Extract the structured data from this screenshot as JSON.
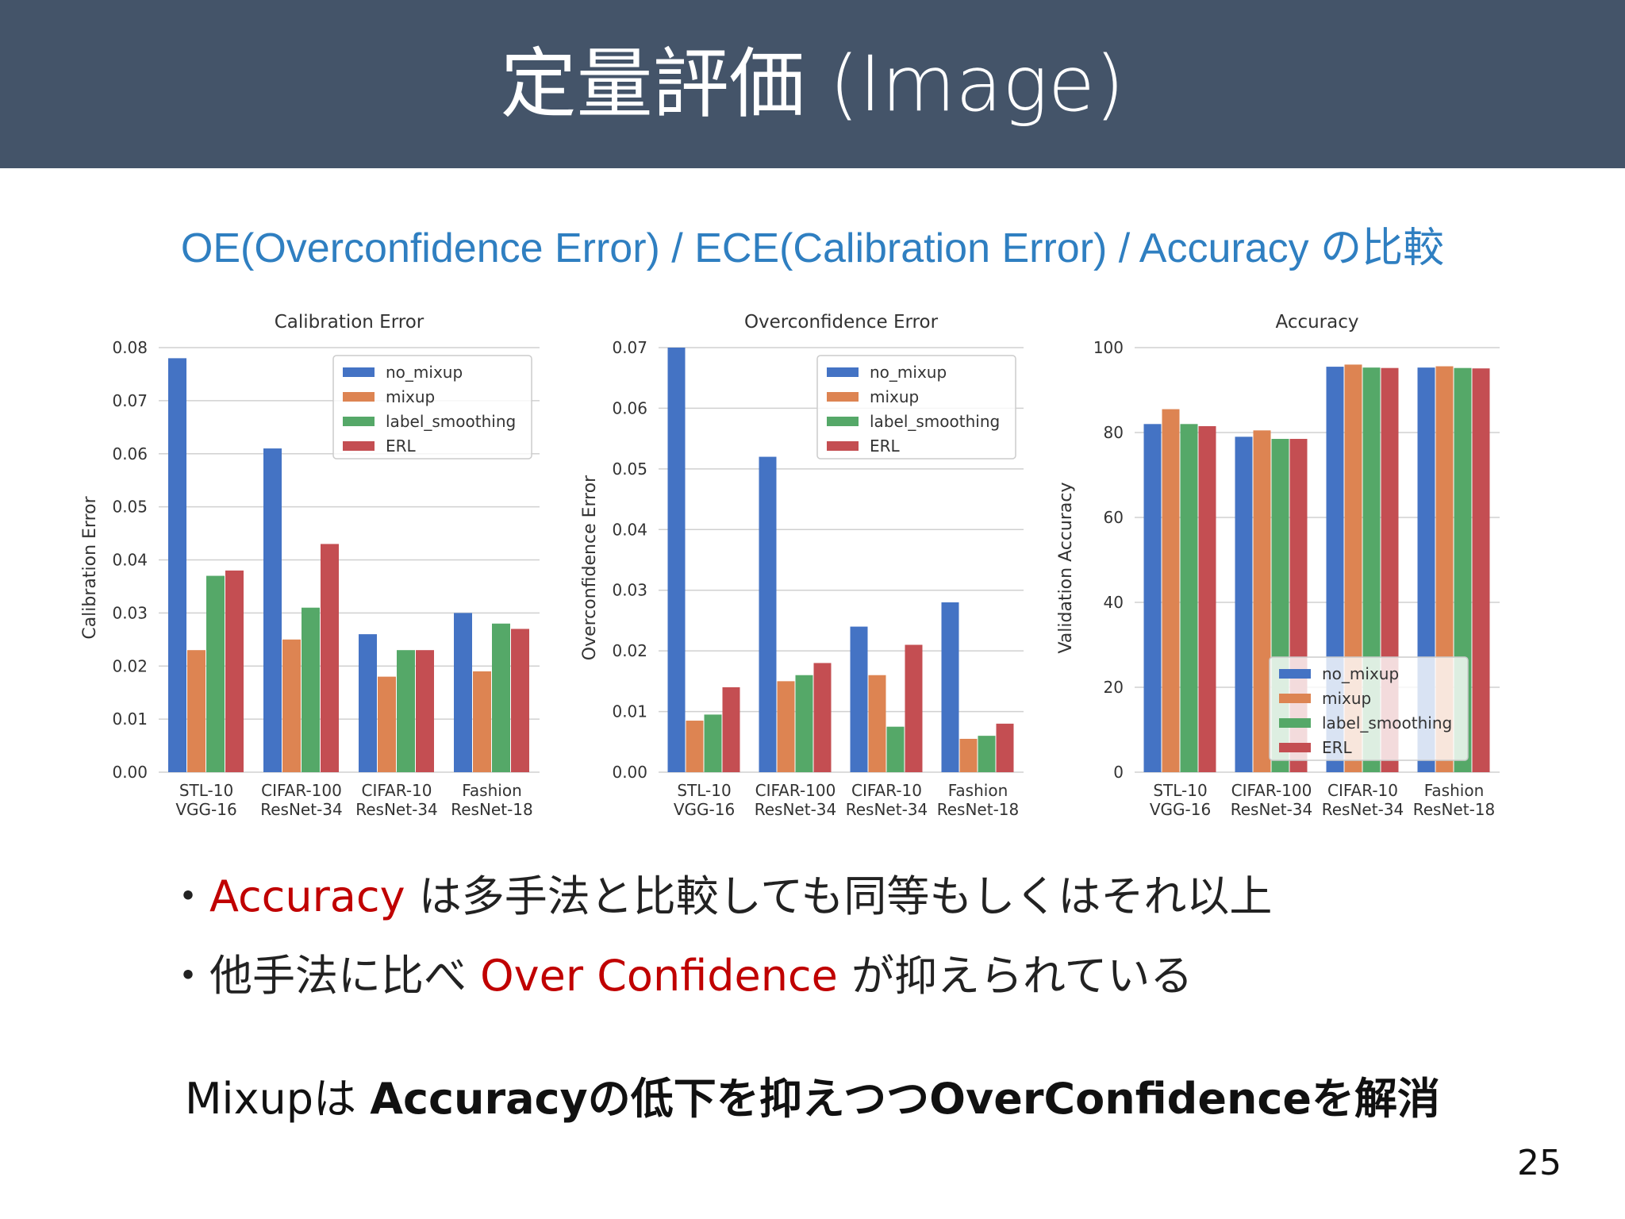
{
  "slide": {
    "title": "定量評価 (Image)",
    "subtitle": "OE(Overconfidence Error) / ECE(Calibration Error) /  Accuracy の比較",
    "page_number": "25"
  },
  "bullets": [
    {
      "prefix": "・",
      "highlight": "Accuracy",
      "text": " は多手法と比較しても同等もしくはそれ以上"
    },
    {
      "prefix": "・他手法に比べ ",
      "highlight": "Over Confidence",
      "text": " が抑えられている"
    }
  ],
  "conclusion": {
    "prefix": "Mixupは ",
    "bold": "Accuracyの低下を抑えつつOverConfidenceを解消"
  },
  "colors": {
    "header_bg": "#445469",
    "subtitle": "#2f7fc1",
    "highlight": "#c00000",
    "series": [
      "#4473c4",
      "#dd8452",
      "#55a868",
      "#c44e52"
    ]
  },
  "chart_data": [
    {
      "type": "bar",
      "title": "Calibration Error",
      "xlabel": "",
      "ylabel": "Calibration Error",
      "categories": [
        [
          "STL-10",
          "VGG-16"
        ],
        [
          "CIFAR-100",
          "ResNet-34"
        ],
        [
          "CIFAR-10",
          "ResNet-34"
        ],
        [
          "Fashion",
          "ResNet-18"
        ]
      ],
      "ylim": [
        0,
        0.08
      ],
      "yticks": [
        "0.00",
        "0.01",
        "0.02",
        "0.03",
        "0.04",
        "0.05",
        "0.06",
        "0.07",
        "0.08"
      ],
      "legend": "top-right",
      "grid": true,
      "series": [
        {
          "name": "no_mixup",
          "values": [
            0.078,
            0.061,
            0.026,
            0.03
          ]
        },
        {
          "name": "mixup",
          "values": [
            0.023,
            0.025,
            0.018,
            0.019
          ]
        },
        {
          "name": "label_smoothing",
          "values": [
            0.037,
            0.031,
            0.023,
            0.028
          ]
        },
        {
          "name": "ERL",
          "values": [
            0.038,
            0.043,
            0.023,
            0.027
          ]
        }
      ]
    },
    {
      "type": "bar",
      "title": "Overconfidence Error",
      "xlabel": "",
      "ylabel": "Overconfidence Error",
      "categories": [
        [
          "STL-10",
          "VGG-16"
        ],
        [
          "CIFAR-100",
          "ResNet-34"
        ],
        [
          "CIFAR-10",
          "ResNet-34"
        ],
        [
          "Fashion",
          "ResNet-18"
        ]
      ],
      "ylim": [
        0,
        0.07
      ],
      "yticks": [
        "0.00",
        "0.01",
        "0.02",
        "0.03",
        "0.04",
        "0.05",
        "0.06",
        "0.07"
      ],
      "legend": "top-right",
      "grid": true,
      "series": [
        {
          "name": "no_mixup",
          "values": [
            0.07,
            0.052,
            0.024,
            0.028
          ]
        },
        {
          "name": "mixup",
          "values": [
            0.0085,
            0.015,
            0.016,
            0.0055
          ]
        },
        {
          "name": "label_smoothing",
          "values": [
            0.0095,
            0.016,
            0.0075,
            0.006
          ]
        },
        {
          "name": "ERL",
          "values": [
            0.014,
            0.018,
            0.021,
            0.008
          ]
        }
      ]
    },
    {
      "type": "bar",
      "title": "Accuracy",
      "xlabel": "",
      "ylabel": "Validation Accuracy",
      "categories": [
        [
          "STL-10",
          "VGG-16"
        ],
        [
          "CIFAR-100",
          "ResNet-34"
        ],
        [
          "CIFAR-10",
          "ResNet-34"
        ],
        [
          "Fashion",
          "ResNet-18"
        ]
      ],
      "ylim": [
        0,
        100
      ],
      "yticks": [
        "0",
        "20",
        "40",
        "60",
        "80",
        "100"
      ],
      "legend": "bottom-right",
      "grid": true,
      "series": [
        {
          "name": "no_mixup",
          "values": [
            82,
            79,
            95.5,
            95.3
          ]
        },
        {
          "name": "mixup",
          "values": [
            85.5,
            80.5,
            96,
            95.6
          ]
        },
        {
          "name": "label_smoothing",
          "values": [
            82,
            78.5,
            95.3,
            95.2
          ]
        },
        {
          "name": "ERL",
          "values": [
            81.5,
            78.5,
            95.2,
            95.1
          ]
        }
      ]
    }
  ]
}
